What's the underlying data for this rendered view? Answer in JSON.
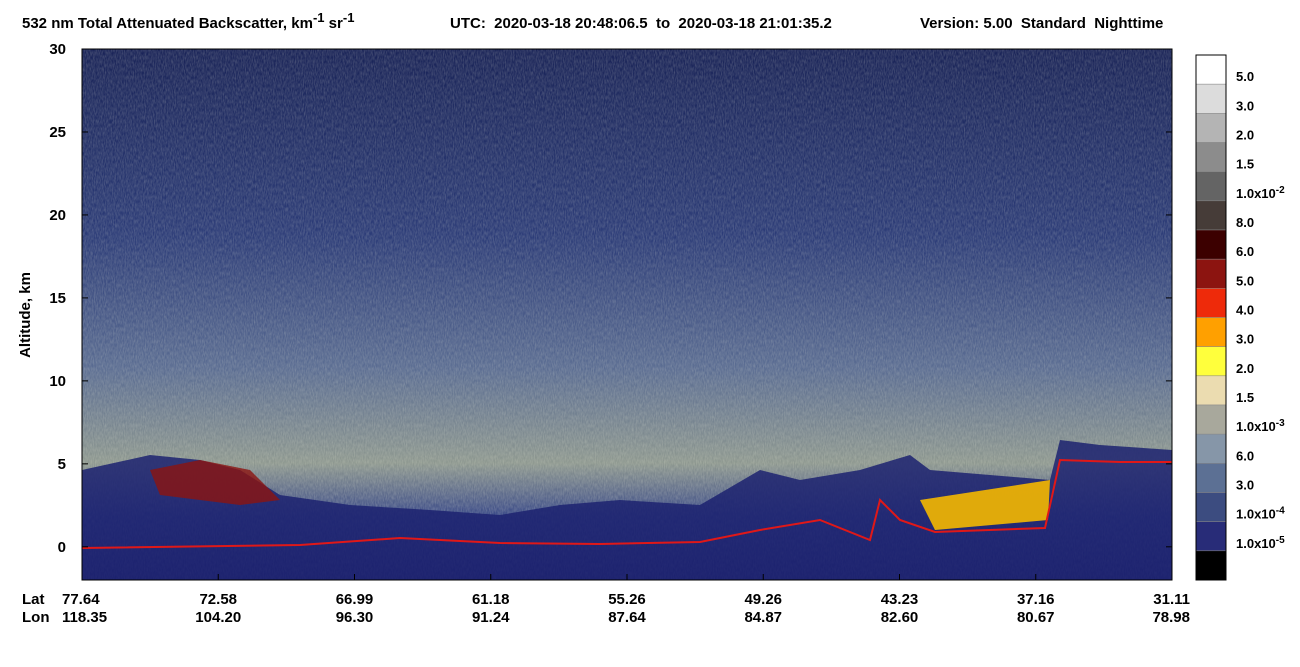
{
  "chart_data": {
    "type": "curtain",
    "title": {
      "text": "532 nm Total Attenuated Backscatter, km",
      "sup1": "-1",
      "text2": " sr",
      "sup2": "-1"
    },
    "subtitle": "UTC:  2020-03-18 20:48:06.5  to  2020-03-18 21:01:35.2",
    "version": "Version: 5.00  Standard  Nighttime",
    "y_label": "Altitude, km",
    "ylim": [
      -2,
      30
    ],
    "yticks": [
      0,
      5,
      10,
      15,
      20,
      25,
      30
    ],
    "lat_label": "Lat",
    "lon_label": "Lon",
    "lat": [
      "77.64",
      "72.58",
      "66.99",
      "61.18",
      "55.26",
      "49.26",
      "43.23",
      "37.16",
      "31.11"
    ],
    "lon": [
      "118.35",
      "104.20",
      "96.30",
      "91.24",
      "87.64",
      "84.87",
      "82.60",
      "80.67",
      "78.98"
    ],
    "colorbar": {
      "colors": [
        "#ffffff",
        "#dcdcdc",
        "#b4b4b4",
        "#8c8c8c",
        "#646464",
        "#463c38",
        "#3c0000",
        "#8c1410",
        "#ee2a0a",
        "#ffa000",
        "#ffff3c",
        "#ebdcb0",
        "#a8a89c",
        "#8696a8",
        "#5c7094",
        "#3c4c80",
        "#282c78",
        "#000000"
      ],
      "labels": [
        "5.0",
        "3.0",
        "2.0",
        "1.5",
        {
          "text": "1.0x10",
          "sup": "-2"
        },
        "8.0",
        "6.0",
        "5.0",
        "4.0",
        "3.0",
        "2.0",
        "1.5",
        {
          "text": "1.0x10",
          "sup": "-3"
        },
        "6.0",
        "3.0",
        {
          "text": "1.0x10",
          "sup": "-4"
        },
        {
          "text": "1.0x10",
          "sup": "-5"
        }
      ]
    }
  }
}
